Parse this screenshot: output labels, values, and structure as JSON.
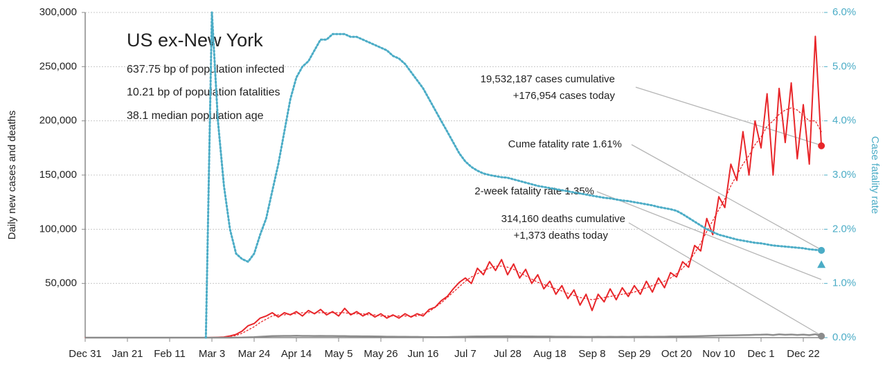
{
  "chart_data": {
    "type": "line",
    "title": "US ex-New York",
    "subtitle_lines": [
      "637.75 bp of population infected",
      "10.21 bp of population fatalities",
      "38.1 median population age"
    ],
    "ylabel": "Daily new cases and deaths",
    "y2label": "Case fatality rate",
    "categories": [
      "Dec 31",
      null,
      null,
      null,
      null,
      null,
      null,
      "Jan 21",
      null,
      null,
      null,
      null,
      null,
      null,
      "Feb 11",
      null,
      null,
      null,
      null,
      null,
      null,
      "Mar 3",
      null,
      null,
      null,
      null,
      null,
      null,
      "Mar 24",
      null,
      null,
      null,
      null,
      null,
      null,
      "Apr 14",
      null,
      null,
      null,
      null,
      null,
      null,
      "May 5",
      null,
      null,
      null,
      null,
      null,
      null,
      "May 26",
      null,
      null,
      null,
      null,
      null,
      null,
      "Jun 16",
      null,
      null,
      null,
      null,
      null,
      null,
      "Jul 7",
      null,
      null,
      null,
      null,
      null,
      null,
      "Jul 28",
      null,
      null,
      null,
      null,
      null,
      null,
      "Aug 18",
      null,
      null,
      null,
      null,
      null,
      null,
      "Sep 8",
      null,
      null,
      null,
      null,
      null,
      null,
      "Sep 29",
      null,
      null,
      null,
      null,
      null,
      null,
      "Oct 20",
      null,
      null,
      null,
      null,
      null,
      null,
      "Nov 10",
      null,
      null,
      null,
      null,
      null,
      null,
      "Dec 1",
      null,
      null,
      null,
      null,
      null,
      null,
      "Dec 22",
      null,
      null,
      null
    ],
    "series": [
      {
        "color": "#e8262a",
        "style": "solid",
        "width": 2,
        "end_marker": "circle",
        "values": [
          0,
          0,
          0,
          0,
          0,
          0,
          0,
          0,
          0,
          0,
          0,
          0,
          0,
          0,
          0,
          0,
          0,
          0,
          0,
          0,
          0,
          100,
          300,
          600,
          1500,
          3000,
          6000,
          11000,
          13000,
          18000,
          20000,
          23000,
          19000,
          23000,
          21000,
          24000,
          20000,
          25000,
          22000,
          26000,
          21000,
          24000,
          20000,
          27000,
          21000,
          24000,
          20000,
          23000,
          19000,
          22000,
          18000,
          21000,
          18000,
          22000,
          19000,
          22000,
          20000,
          26000,
          28000,
          34000,
          38000,
          45000,
          51000,
          55000,
          50000,
          64000,
          58000,
          70000,
          62000,
          72000,
          58000,
          68000,
          55000,
          63000,
          50000,
          58000,
          45000,
          52000,
          40000,
          48000,
          36000,
          44000,
          30000,
          40000,
          25000,
          40000,
          33000,
          45000,
          35000,
          46000,
          38000,
          48000,
          40000,
          52000,
          42000,
          55000,
          46000,
          60000,
          56000,
          70000,
          65000,
          85000,
          80000,
          110000,
          95000,
          130000,
          120000,
          160000,
          145000,
          190000,
          150000,
          200000,
          175000,
          225000,
          150000,
          230000,
          180000,
          235000,
          165000,
          215000,
          160000,
          278000,
          176954
        ]
      },
      {
        "color": "#e8262a",
        "style": "dotted",
        "width": 1.3,
        "values": [
          0,
          0,
          0,
          0,
          0,
          0,
          0,
          0,
          0,
          0,
          0,
          0,
          0,
          0,
          0,
          0,
          0,
          0,
          0,
          0,
          0,
          100,
          300,
          600,
          1000,
          2000,
          4000,
          7000,
          10000,
          14000,
          17000,
          20000,
          21000,
          21000,
          22000,
          22000,
          23000,
          23000,
          23000,
          23000,
          23000,
          23000,
          23000,
          23000,
          22000,
          22000,
          22000,
          21000,
          21000,
          20000,
          20000,
          20000,
          20000,
          20000,
          20000,
          20000,
          22000,
          24000,
          28000,
          32000,
          37000,
          42000,
          47000,
          52000,
          56000,
          59000,
          62000,
          64000,
          66000,
          66000,
          65000,
          63000,
          60000,
          57000,
          54000,
          51000,
          49000,
          47000,
          45000,
          43000,
          41000,
          39000,
          37000,
          36000,
          35000,
          36000,
          37000,
          38000,
          39000,
          40000,
          41000,
          42000,
          44000,
          46000,
          48000,
          50000,
          52000,
          55000,
          59000,
          64000,
          70000,
          78000,
          87000,
          98000,
          108000,
          118000,
          128000,
          140000,
          150000,
          160000,
          168000,
          178000,
          185000,
          195000,
          200000,
          206000,
          210000,
          212000,
          210000,
          205000,
          200000,
          200000,
          190000
        ]
      },
      {
        "color": "#8c8c8c",
        "style": "solid",
        "width": 2.5,
        "end_marker": "circle",
        "values": [
          0,
          0,
          0,
          0,
          0,
          0,
          0,
          0,
          0,
          0,
          0,
          0,
          0,
          0,
          0,
          0,
          0,
          0,
          0,
          0,
          0,
          0,
          0,
          0,
          0,
          50,
          150,
          300,
          500,
          800,
          1100,
          1400,
          1500,
          1600,
          1600,
          1700,
          1600,
          1600,
          1500,
          1600,
          1500,
          1500,
          1400,
          1400,
          1300,
          1300,
          1200,
          1200,
          1100,
          1000,
          900,
          900,
          800,
          800,
          700,
          700,
          600,
          600,
          500,
          600,
          600,
          700,
          800,
          900,
          1000,
          1100,
          1100,
          1200,
          1200,
          1200,
          1300,
          1200,
          1200,
          1100,
          1100,
          1000,
          1000,
          1000,
          900,
          900,
          900,
          800,
          800,
          700,
          700,
          800,
          700,
          800,
          700,
          800,
          700,
          800,
          800,
          900,
          800,
          900,
          900,
          1000,
          1000,
          1100,
          1200,
          1300,
          1400,
          1600,
          1700,
          1900,
          2000,
          2100,
          2200,
          2300,
          2400,
          2600,
          2700,
          2900,
          2400,
          3000,
          2600,
          2900,
          2500,
          2800,
          2300,
          3100,
          1373
        ]
      },
      {
        "color": "#4bacc6",
        "style": "dotted",
        "width": 3,
        "axis": "y2",
        "end_marker": "circle",
        "values": [
          null,
          null,
          null,
          null,
          null,
          null,
          null,
          null,
          null,
          null,
          null,
          null,
          null,
          null,
          null,
          null,
          null,
          null,
          null,
          null,
          0,
          6.0,
          4.0,
          2.8,
          2.0,
          1.55,
          1.45,
          1.4,
          1.55,
          1.9,
          2.2,
          2.7,
          3.2,
          3.8,
          4.4,
          4.8,
          5.0,
          5.1,
          5.3,
          5.5,
          5.5,
          5.6,
          5.6,
          5.6,
          5.55,
          5.55,
          5.5,
          5.45,
          5.4,
          5.35,
          5.3,
          5.2,
          5.15,
          5.05,
          4.9,
          4.75,
          4.6,
          4.4,
          4.2,
          4.0,
          3.8,
          3.6,
          3.4,
          3.25,
          3.15,
          3.08,
          3.03,
          3.0,
          2.98,
          2.96,
          2.95,
          2.92,
          2.89,
          2.86,
          2.83,
          2.8,
          2.78,
          2.76,
          2.74,
          2.72,
          2.7,
          2.68,
          2.66,
          2.64,
          2.62,
          2.6,
          2.58,
          2.57,
          2.55,
          2.53,
          2.52,
          2.5,
          2.48,
          2.46,
          2.44,
          2.41,
          2.39,
          2.37,
          2.34,
          2.28,
          2.21,
          2.14,
          2.07,
          2.0,
          1.95,
          1.9,
          1.87,
          1.84,
          1.81,
          1.79,
          1.77,
          1.75,
          1.74,
          1.72,
          1.7,
          1.69,
          1.68,
          1.67,
          1.66,
          1.65,
          1.63,
          1.62,
          1.61
        ]
      }
    ],
    "markers": [
      {
        "value": 1.35,
        "axis": "y2",
        "shape": "triangle",
        "color": "#4bacc6"
      }
    ],
    "annotations": [
      "19,532,187 cases cumulative",
      "+176,954 cases today",
      "Cume fatality rate 1.61%",
      "2-week fatality rate 1.35%",
      "314,160 deaths cumulative",
      "+1,373 deaths today"
    ],
    "ylim": [
      0,
      300000
    ],
    "yticks": [
      {
        "value": 50000,
        "label": "50,000"
      },
      {
        "value": 100000,
        "label": "100,000"
      },
      {
        "value": 150000,
        "label": "150,000"
      },
      {
        "value": 200000,
        "label": "200,000"
      },
      {
        "value": 250000,
        "label": "250,000"
      },
      {
        "value": 300000,
        "label": "300,000"
      }
    ],
    "y2lim": [
      0,
      6
    ],
    "y2ticks": [
      {
        "value": 0,
        "label": "0.0%"
      },
      {
        "value": 1,
        "label": "1.0%"
      },
      {
        "value": 2,
        "label": "2.0%"
      },
      {
        "value": 3,
        "label": "3.0%"
      },
      {
        "value": 4,
        "label": "4.0%"
      },
      {
        "value": 5,
        "label": "5.0%"
      },
      {
        "value": 6,
        "label": "6.0%"
      }
    ],
    "grid": true
  }
}
